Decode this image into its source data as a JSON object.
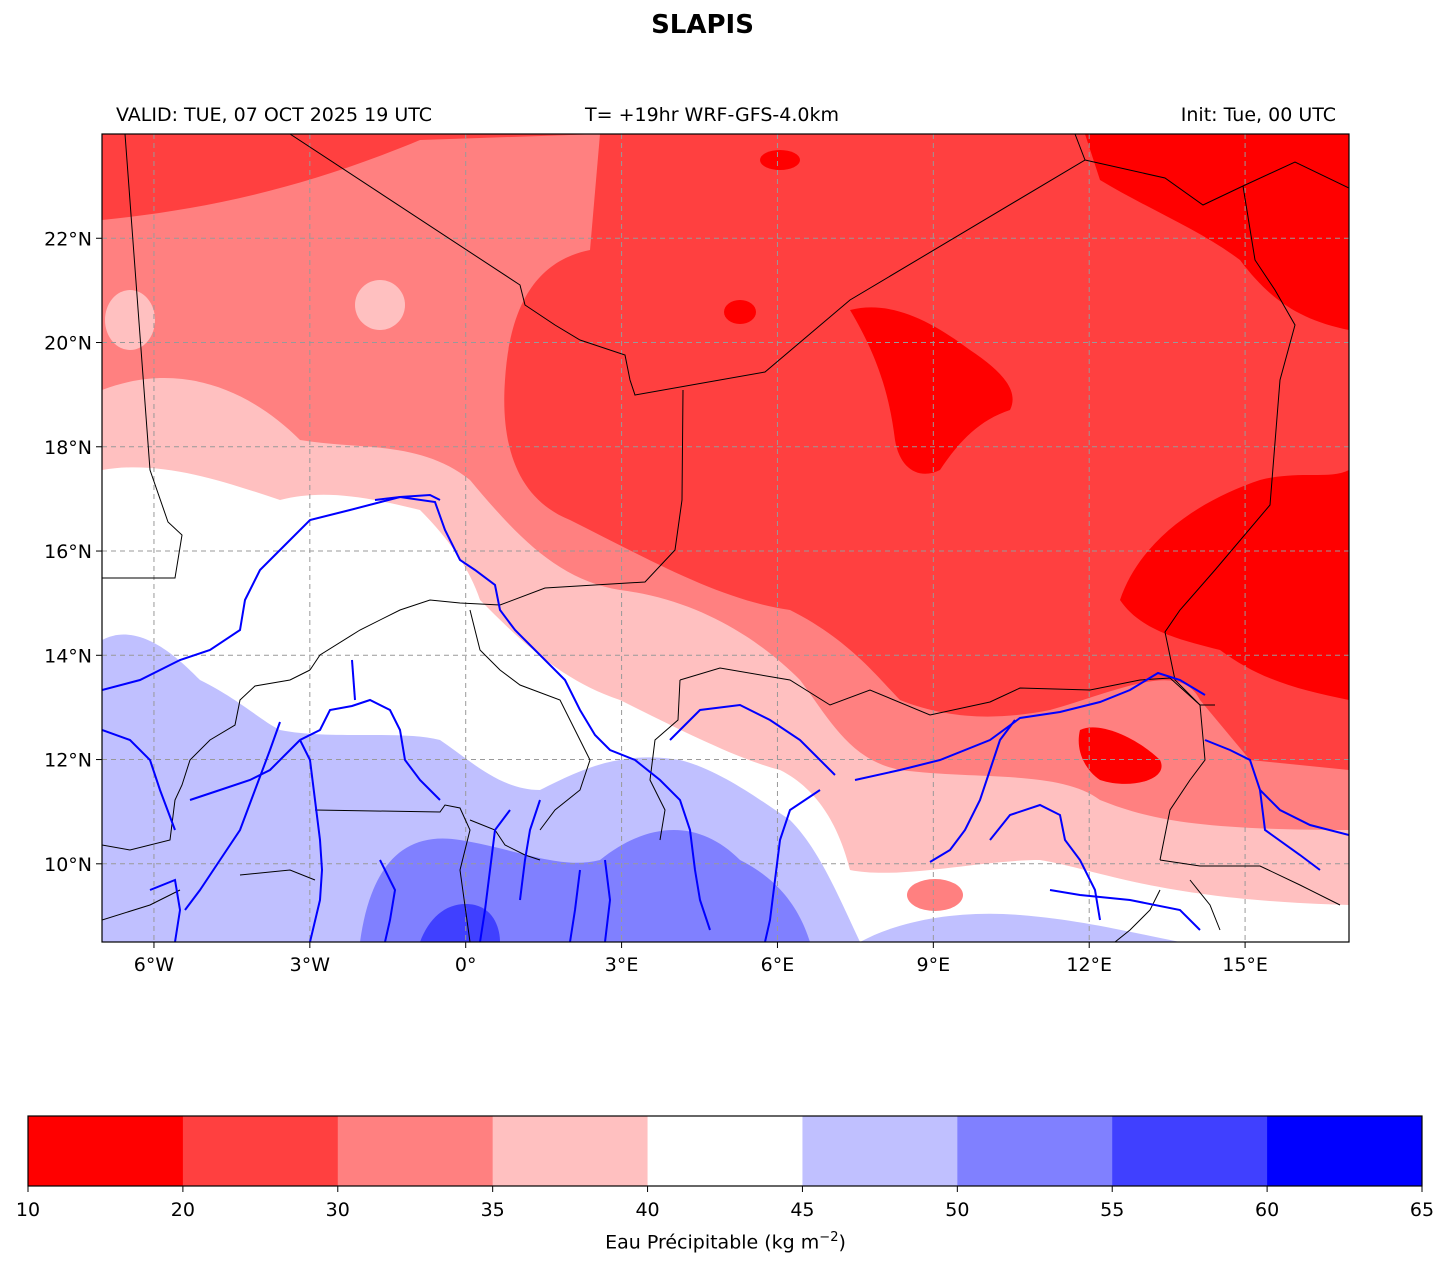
{
  "title": "SLAPIS",
  "header": {
    "valid": "VALID: TUE, 07 OCT 2025 19 UTC",
    "model": "T= +19hr WRF-GFS-4.0km",
    "init": "Init: Tue, 00 UTC"
  },
  "map": {
    "lon_range": [
      -7,
      17
    ],
    "lat_range": [
      8.5,
      24
    ],
    "lon_ticks": [
      {
        "value": -6,
        "label": "6°W"
      },
      {
        "value": -3,
        "label": "3°W"
      },
      {
        "value": 0,
        "label": "0°"
      },
      {
        "value": 3,
        "label": "3°E"
      },
      {
        "value": 6,
        "label": "6°E"
      },
      {
        "value": 9,
        "label": "9°E"
      },
      {
        "value": 12,
        "label": "12°E"
      },
      {
        "value": 15,
        "label": "15°E"
      }
    ],
    "lat_ticks": [
      {
        "value": 10,
        "label": "10°N"
      },
      {
        "value": 12,
        "label": "12°N"
      },
      {
        "value": 14,
        "label": "14°N"
      },
      {
        "value": 16,
        "label": "16°N"
      },
      {
        "value": 18,
        "label": "18°N"
      },
      {
        "value": 20,
        "label": "20°N"
      },
      {
        "value": 22,
        "label": "22°N"
      }
    ],
    "grid": true
  },
  "colorbar": {
    "boundaries": [
      "10",
      "20",
      "30",
      "35",
      "40",
      "45",
      "50",
      "55",
      "60",
      "65"
    ],
    "colors": [
      "#ff0000",
      "#ff4040",
      "#ff8080",
      "#ffc0c0",
      "#ffffff",
      "#c0c0ff",
      "#8080ff",
      "#4040ff",
      "#0000ff"
    ],
    "label_main": "Eau Précipitable (kg m",
    "label_sup": "−2",
    "label_end": ")"
  }
}
